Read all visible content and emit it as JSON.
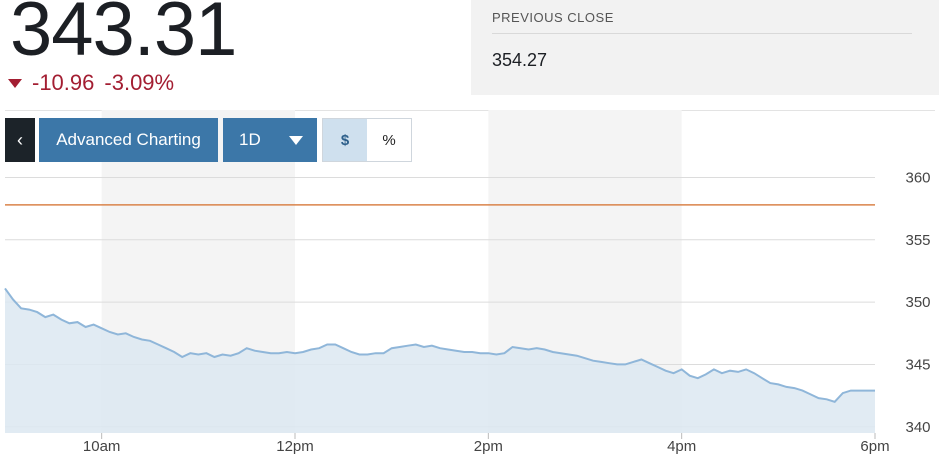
{
  "quote": {
    "price": "343.31",
    "change": "-10.96",
    "change_percent": "-3.09%",
    "direction": "down"
  },
  "previous_close": {
    "label": "PREVIOUS CLOSE",
    "value": "354.27"
  },
  "toolbar": {
    "back_label": "‹",
    "advanced_label": "Advanced Charting",
    "range_label": "1D",
    "dollar_label": "$",
    "percent_label": "%",
    "active_mode": "dollar"
  },
  "colors": {
    "line": "#8fb6d9",
    "area": "#dce7f1",
    "reference_line": "#d9834a",
    "down": "#a31e32",
    "button": "#3c77a8"
  },
  "chart_data": {
    "type": "area",
    "title": "",
    "xlabel": "",
    "ylabel": "",
    "x_ticks": [
      "10am",
      "12pm",
      "2pm",
      "4pm",
      "6pm"
    ],
    "y_ticks": [
      340,
      345,
      350,
      355,
      360
    ],
    "ylim": [
      339.5,
      361
    ],
    "reference_line": 357.8,
    "grid": true,
    "y_axis_side": "right",
    "series": [
      {
        "x": [
          "9:00",
          "9:05",
          "9:10",
          "9:15",
          "9:20",
          "9:25",
          "9:30",
          "9:35",
          "9:40",
          "9:45",
          "9:50",
          "9:55",
          "10:00",
          "10:05",
          "10:10",
          "10:15",
          "10:20",
          "10:25",
          "10:30",
          "10:35",
          "10:40",
          "10:45",
          "10:50",
          "10:55",
          "11:00",
          "11:05",
          "11:10",
          "11:15",
          "11:20",
          "11:25",
          "11:30",
          "11:35",
          "11:40",
          "11:45",
          "11:50",
          "11:55",
          "12:00",
          "12:05",
          "12:10",
          "12:15",
          "12:20",
          "12:25",
          "12:30",
          "12:35",
          "12:40",
          "12:45",
          "12:50",
          "12:55",
          "13:00",
          "13:05",
          "13:10",
          "13:15",
          "13:20",
          "13:25",
          "13:30",
          "13:35",
          "13:40",
          "13:45",
          "13:50",
          "13:55",
          "14:00",
          "14:05",
          "14:10",
          "14:15",
          "14:20",
          "14:25",
          "14:30",
          "14:35",
          "14:40",
          "14:45",
          "14:50",
          "14:55",
          "15:00",
          "15:05",
          "15:10",
          "15:15",
          "15:20",
          "15:25",
          "15:30",
          "15:35",
          "15:40",
          "15:45",
          "15:50",
          "15:55",
          "16:00",
          "16:05",
          "16:10",
          "16:15",
          "16:20",
          "16:25",
          "16:30",
          "16:35",
          "16:40",
          "16:45",
          "16:50",
          "16:55",
          "17:00",
          "17:05",
          "17:10",
          "17:15",
          "17:20",
          "17:25",
          "17:30",
          "17:35",
          "17:40",
          "17:45",
          "17:50",
          "17:55",
          "18:00"
        ],
        "values": [
          351.1,
          350.2,
          349.5,
          349.4,
          349.2,
          348.8,
          349.0,
          348.6,
          348.3,
          348.4,
          348.0,
          348.2,
          347.9,
          347.6,
          347.4,
          347.5,
          347.2,
          347.0,
          346.9,
          346.6,
          346.3,
          346.0,
          345.6,
          345.9,
          345.8,
          345.9,
          345.6,
          345.8,
          345.7,
          345.9,
          346.3,
          346.1,
          346.0,
          345.9,
          345.9,
          346.0,
          345.9,
          346.0,
          346.2,
          346.3,
          346.6,
          346.6,
          346.3,
          346.0,
          345.8,
          345.8,
          345.9,
          345.9,
          346.3,
          346.4,
          346.5,
          346.6,
          346.4,
          346.5,
          346.3,
          346.2,
          346.1,
          346.0,
          346.0,
          345.9,
          345.9,
          345.8,
          345.9,
          346.4,
          346.3,
          346.2,
          346.3,
          346.2,
          346.0,
          345.9,
          345.8,
          345.7,
          345.5,
          345.3,
          345.2,
          345.1,
          345.0,
          345.0,
          345.2,
          345.4,
          345.1,
          344.8,
          344.5,
          344.3,
          344.6,
          344.1,
          343.9,
          344.2,
          344.6,
          344.3,
          344.5,
          344.4,
          344.6,
          344.3,
          343.9,
          343.5,
          343.4,
          343.2,
          343.1,
          342.9,
          342.6,
          342.3,
          342.2,
          342.0,
          342.7,
          342.9,
          342.9,
          342.9,
          342.9
        ]
      }
    ]
  }
}
